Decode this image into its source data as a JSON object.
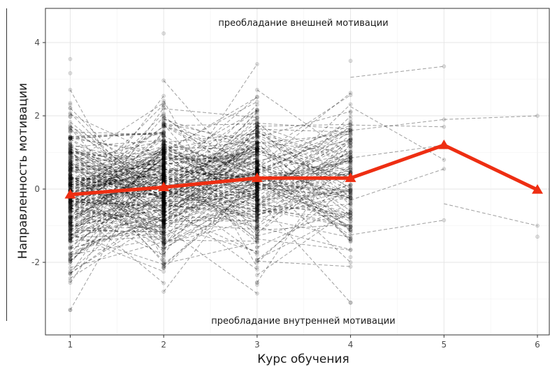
{
  "chart_data": {
    "type": "line",
    "title": "",
    "xlabel": "Курс обучения",
    "ylabel": "Направленность мотивации",
    "xlim": [
      0.8,
      6.2
    ],
    "ylim": [
      -3.9,
      4.9
    ],
    "x_ticks": [
      1,
      2,
      3,
      4,
      5,
      6
    ],
    "y_ticks": [
      -2,
      0,
      2,
      4
    ],
    "grid": true,
    "legend": "none",
    "annotations": {
      "top": "преобладание внешней мотивации",
      "bottom": "преобладание внутренней мотивации"
    },
    "mean_series": {
      "color": "#ee2e12",
      "marker": "triangle",
      "x": [
        1,
        2,
        3,
        4,
        5,
        6
      ],
      "y": [
        -0.15,
        0.05,
        0.3,
        0.3,
        1.2,
        -0.02
      ]
    },
    "individual_trajectories": {
      "style": "dashed-gray",
      "count_per_year": [
        300,
        280,
        200,
        140,
        6,
        2
      ],
      "range_by_year": [
        [
          -3.3,
          3.55
        ],
        [
          -2.8,
          4.25
        ],
        [
          -2.85,
          3.9
        ],
        [
          -3.1,
          3.5
        ],
        [
          -0.85,
          3.35
        ],
        [
          -1.3,
          2.0
        ]
      ]
    },
    "colors": {
      "panel_border": "#333333",
      "grid": "#ebebeb",
      "points": "#000000"
    }
  }
}
